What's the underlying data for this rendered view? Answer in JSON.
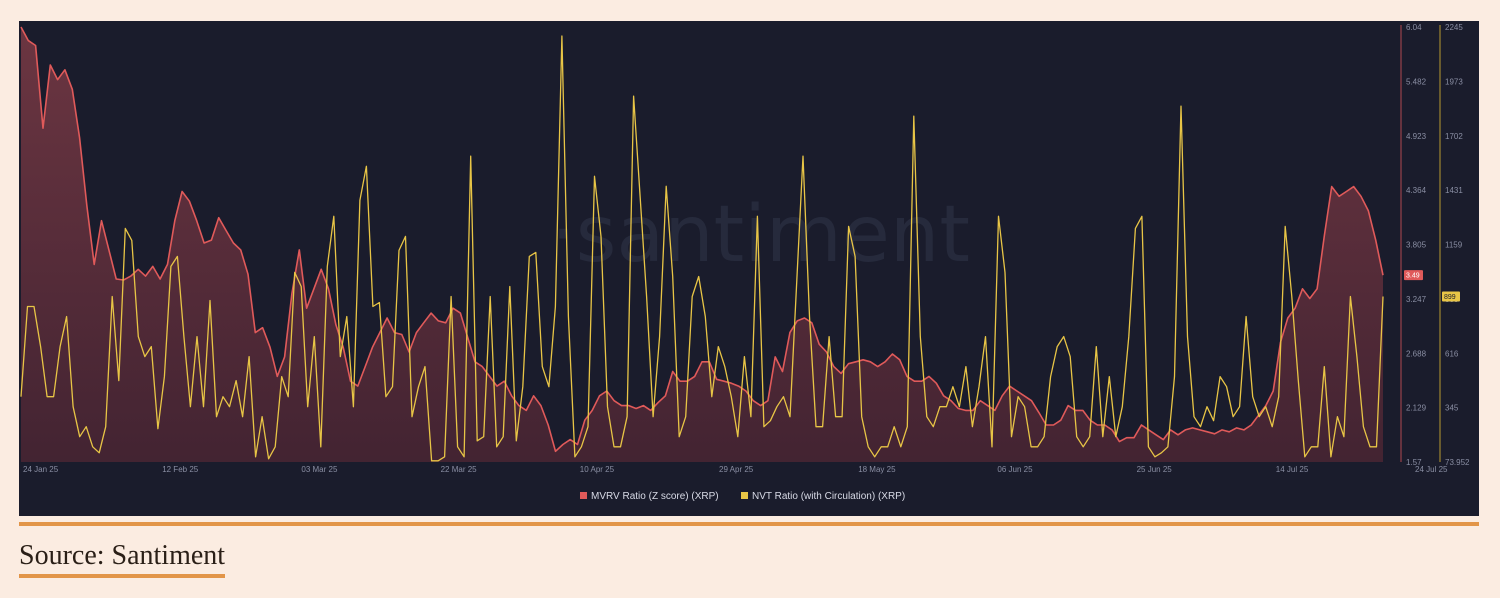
{
  "watermark": "·santiment",
  "source": "Source: Santiment",
  "colors": {
    "panel_bg": "#1a1c2c",
    "mvrv": "#e05a5a",
    "nvt": "#e8c546",
    "page_bg": "#fbece1",
    "accent": "#e29548"
  },
  "chart_data": {
    "type": "line",
    "x_tick_labels": [
      "24 Jan 25",
      "12 Feb 25",
      "03 Mar 25",
      "22 Mar 25",
      "10 Apr 25",
      "29 Apr 25",
      "18 May 25",
      "06 Jun 25",
      "25 Jun 25",
      "14 Jul 25",
      "24 Jul 25"
    ],
    "left_axis": {
      "ticks": [
        "6.04",
        "5.482",
        "4.923",
        "4.364",
        "3.805",
        "3.247",
        "2.688",
        "2.129",
        "1.57"
      ],
      "range": [
        1.57,
        6.04
      ]
    },
    "right_axis": {
      "ticks": [
        "2245",
        "1973",
        "1702",
        "1431",
        "1159",
        "888",
        "616",
        "345",
        "73.952"
      ],
      "range": [
        73.952,
        2245
      ]
    },
    "legend": [
      "MVRV Ratio (Z score) (XRP)",
      "NVT Ratio (with Circulation) (XRP)"
    ],
    "series": [
      {
        "name": "MVRV Ratio (Z score) (XRP)",
        "axis": "left",
        "current_label": "3.49",
        "values": [
          6.04,
          5.9,
          5.85,
          5.0,
          5.65,
          5.5,
          5.6,
          5.4,
          4.9,
          4.2,
          3.6,
          4.05,
          3.75,
          3.45,
          3.44,
          3.48,
          3.55,
          3.48,
          3.58,
          3.45,
          3.6,
          4.05,
          4.35,
          4.25,
          4.05,
          3.82,
          3.85,
          4.08,
          3.95,
          3.82,
          3.75,
          3.5,
          2.9,
          2.95,
          2.75,
          2.45,
          2.65,
          3.3,
          3.75,
          3.15,
          3.35,
          3.55,
          3.35,
          2.98,
          2.75,
          2.4,
          2.35,
          2.55,
          2.75,
          2.9,
          3.05,
          2.9,
          2.88,
          2.7,
          2.9,
          3.0,
          3.1,
          3.02,
          3.0,
          3.15,
          3.1,
          2.85,
          2.6,
          2.55,
          2.45,
          2.35,
          2.4,
          2.25,
          2.15,
          2.1,
          2.25,
          2.15,
          1.95,
          1.68,
          1.75,
          1.8,
          1.75,
          2.0,
          2.1,
          2.25,
          2.3,
          2.2,
          2.15,
          2.15,
          2.12,
          2.15,
          2.1,
          2.18,
          2.25,
          2.5,
          2.4,
          2.4,
          2.45,
          2.6,
          2.6,
          2.42,
          2.4,
          2.38,
          2.35,
          2.3,
          2.2,
          2.15,
          2.2,
          2.65,
          2.5,
          2.9,
          3.02,
          3.05,
          3.0,
          2.78,
          2.7,
          2.55,
          2.48,
          2.58,
          2.6,
          2.62,
          2.6,
          2.55,
          2.6,
          2.68,
          2.62,
          2.45,
          2.4,
          2.4,
          2.45,
          2.38,
          2.25,
          2.2,
          2.12,
          2.1,
          2.1,
          2.2,
          2.15,
          2.1,
          2.25,
          2.35,
          2.3,
          2.25,
          2.2,
          2.08,
          1.95,
          1.95,
          2.0,
          2.15,
          2.1,
          2.1,
          2.0,
          1.95,
          1.95,
          1.9,
          1.78,
          1.82,
          1.82,
          1.95,
          1.9,
          1.85,
          1.8,
          1.9,
          1.85,
          1.9,
          1.92,
          1.9,
          1.88,
          1.86,
          1.9,
          1.88,
          1.92,
          1.9,
          1.95,
          2.05,
          2.15,
          2.3,
          2.8,
          3.05,
          3.15,
          3.35,
          3.25,
          3.35,
          3.9,
          4.4,
          4.3,
          4.35,
          4.4,
          4.3,
          4.15,
          3.85,
          3.49
        ]
      },
      {
        "name": "NVT Ratio (with Circulation) (XRP)",
        "axis": "right",
        "current_label": "899",
        "values": [
          400,
          850,
          850,
          650,
          400,
          400,
          650,
          800,
          350,
          200,
          250,
          150,
          120,
          250,
          900,
          480,
          1240,
          1180,
          700,
          600,
          650,
          240,
          500,
          1050,
          1100,
          700,
          350,
          700,
          350,
          880,
          300,
          400,
          350,
          480,
          300,
          600,
          100,
          300,
          90,
          150,
          500,
          400,
          1020,
          950,
          350,
          700,
          150,
          1050,
          1300,
          600,
          800,
          350,
          1380,
          1550,
          850,
          870,
          400,
          450,
          1130,
          1200,
          300,
          450,
          550,
          80,
          80,
          100,
          900,
          150,
          100,
          1600,
          180,
          200,
          900,
          150,
          200,
          950,
          180,
          450,
          1100,
          1120,
          550,
          450,
          850,
          2200,
          800,
          100,
          150,
          250,
          1500,
          1200,
          350,
          150,
          150,
          300,
          1900,
          1400,
          900,
          300,
          700,
          1450,
          1000,
          200,
          300,
          900,
          1000,
          800,
          400,
          650,
          550,
          400,
          200,
          600,
          300,
          1300,
          250,
          280,
          350,
          400,
          300,
          950,
          1600,
          800,
          250,
          250,
          700,
          300,
          300,
          1250,
          1100,
          300,
          150,
          100,
          150,
          150,
          250,
          150,
          250,
          1800,
          700,
          300,
          250,
          350,
          350,
          450,
          350,
          550,
          250,
          450,
          700,
          150,
          1300,
          1020,
          200,
          400,
          350,
          150,
          150,
          200,
          500,
          650,
          700,
          600,
          200,
          150,
          200,
          650,
          200,
          500,
          200,
          350,
          700,
          1240,
          1300,
          150,
          100,
          120,
          150,
          500,
          1850,
          700,
          300,
          250,
          350,
          280,
          500,
          450,
          300,
          350,
          800,
          400,
          300,
          350,
          250,
          400,
          1250,
          900,
          480,
          100,
          150,
          150,
          550,
          100,
          300,
          200,
          900,
          600,
          250,
          150,
          150,
          900
        ]
      }
    ]
  }
}
